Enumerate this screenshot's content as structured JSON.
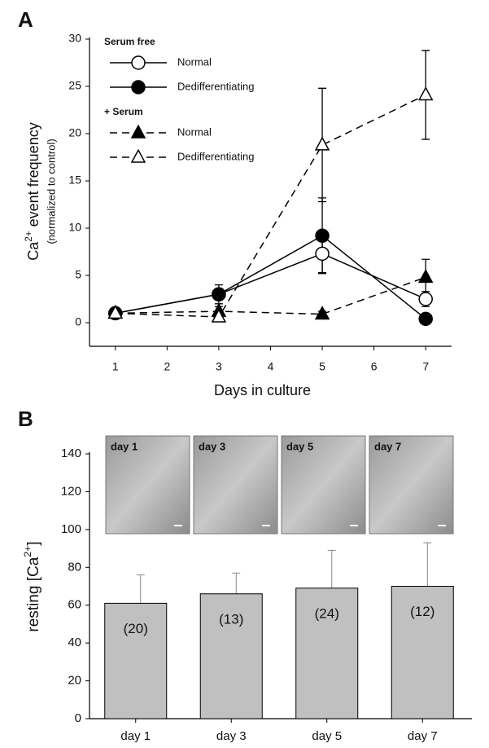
{
  "chart_data": [
    {
      "type": "line",
      "panel": "A",
      "ylabel": [
        "Ca",
        "2+",
        " event frequency"
      ],
      "ylabel_note": "(normalized to control)",
      "xlabel": "Days in culture",
      "x": [
        1,
        3,
        5,
        7
      ],
      "xlim": [
        0.5,
        7.5
      ],
      "xticks": [
        1,
        2,
        3,
        4,
        5,
        6,
        7
      ],
      "ylim": [
        -2.5,
        30
      ],
      "yticks": [
        0,
        5,
        10,
        15,
        20,
        25,
        30
      ],
      "legend_groups": [
        {
          "title": "Serum free",
          "series": [
            {
              "name": "Normal",
              "color": "#000000",
              "marker": "circle",
              "filled": false,
              "line_style": "solid",
              "values": [
                1,
                3,
                7.3,
                2.5
              ],
              "errors": [
                0.3,
                0.6,
                2,
                0.8
              ]
            },
            {
              "name": "Dedifferentiating",
              "color": "#000000",
              "marker": "circle",
              "filled": true,
              "line_style": "solid",
              "values": [
                1,
                3,
                9.2,
                0.4
              ],
              "errors": [
                0.3,
                1,
                4,
                0.3
              ]
            }
          ]
        },
        {
          "title": "+ Serum",
          "series": [
            {
              "name": "Normal",
              "color": "#000000",
              "marker": "triangle",
              "filled": true,
              "line_style": "dashed",
              "values": [
                1,
                1.2,
                0.9,
                4.8
              ],
              "errors": [
                0.3,
                0.5,
                0.3,
                1.9
              ]
            },
            {
              "name": "Dedifferentiating",
              "color": "#000000",
              "marker": "triangle",
              "filled": false,
              "line_style": "dashed",
              "values": [
                1,
                0.6,
                18.8,
                24.1
              ],
              "errors": [
                0.5,
                0.5,
                6,
                4.7
              ]
            }
          ]
        }
      ]
    },
    {
      "type": "bar",
      "panel": "B",
      "ylabel": [
        "resting [Ca",
        "2+",
        "]"
      ],
      "categories": [
        "day 1",
        "day 3",
        "day 5",
        "day 7"
      ],
      "values": [
        61,
        66,
        69,
        70
      ],
      "errors": [
        15,
        11,
        20,
        23
      ],
      "n_labels": [
        "(20)",
        "(13)",
        "(24)",
        "(12)"
      ],
      "color": "#c0c0c0",
      "ylim": [
        0,
        140
      ],
      "yticks": [
        0,
        20,
        40,
        60,
        80,
        100,
        120,
        140
      ],
      "insets": [
        "day 1",
        "day 3",
        "day 5",
        "day 7"
      ]
    }
  ]
}
